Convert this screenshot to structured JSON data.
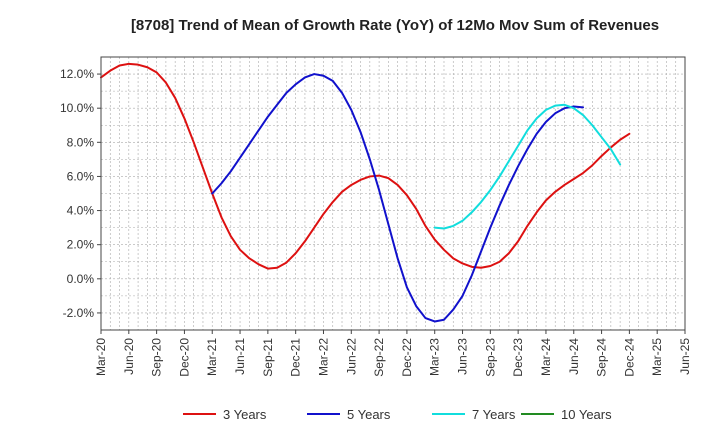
{
  "chart_data": {
    "type": "line",
    "title": "[8708]  Trend of Mean of Growth Rate (YoY) of 12Mo Mov Sum of Revenues",
    "xlabel": "",
    "ylabel": "",
    "x_ticks": [
      "Mar-20",
      "Jun-20",
      "Sep-20",
      "Dec-20",
      "Mar-21",
      "Jun-21",
      "Sep-21",
      "Dec-21",
      "Mar-22",
      "Jun-22",
      "Sep-22",
      "Dec-22",
      "Mar-23",
      "Jun-23",
      "Sep-23",
      "Dec-23",
      "Mar-24",
      "Jun-24",
      "Sep-24",
      "Dec-24",
      "Mar-25",
      "Jun-25"
    ],
    "y_ticks": [
      "12.0%",
      "10.0%",
      "8.0%",
      "6.0%",
      "4.0%",
      "2.0%",
      "0.0%",
      "-2.0%"
    ],
    "y_tick_values": [
      12,
      10,
      8,
      6,
      4,
      2,
      0,
      -2
    ],
    "ylim": [
      -3.0,
      13.0
    ],
    "xlim_months": [
      0,
      63
    ],
    "grid": true,
    "legend_position": "bottom",
    "series": [
      {
        "name": "3 Years",
        "color": "#dd1111",
        "start_month": 0,
        "values": [
          11.8,
          12.2,
          12.5,
          12.6,
          12.55,
          12.4,
          12.1,
          11.5,
          10.6,
          9.4,
          8.0,
          6.5,
          5.0,
          3.6,
          2.5,
          1.7,
          1.2,
          0.85,
          0.6,
          0.65,
          0.95,
          1.5,
          2.2,
          3.0,
          3.8,
          4.5,
          5.1,
          5.5,
          5.8,
          6.0,
          6.05,
          5.9,
          5.5,
          4.9,
          4.1,
          3.1,
          2.3,
          1.7,
          1.2,
          0.9,
          0.7,
          0.65,
          0.75,
          1.0,
          1.5,
          2.2,
          3.1,
          3.9,
          4.6,
          5.1,
          5.5,
          5.85,
          6.2,
          6.65,
          7.2,
          7.7,
          8.15,
          8.5
        ]
      },
      {
        "name": "5 Years",
        "color": "#1111cc",
        "start_month": 12,
        "values": [
          5.0,
          5.6,
          6.3,
          7.1,
          7.9,
          8.7,
          9.5,
          10.2,
          10.9,
          11.4,
          11.8,
          12.0,
          11.9,
          11.6,
          10.9,
          9.9,
          8.6,
          7.0,
          5.2,
          3.2,
          1.2,
          -0.5,
          -1.6,
          -2.3,
          -2.5,
          -2.4,
          -1.8,
          -1.0,
          0.2,
          1.6,
          3.0,
          4.3,
          5.5,
          6.6,
          7.6,
          8.5,
          9.2,
          9.7,
          10.0,
          10.1,
          10.05
        ]
      },
      {
        "name": "7 Years",
        "color": "#11dddd",
        "start_month": 36,
        "values": [
          3.0,
          2.95,
          3.1,
          3.4,
          3.9,
          4.5,
          5.2,
          6.0,
          6.9,
          7.8,
          8.7,
          9.4,
          9.9,
          10.15,
          10.2,
          10.0,
          9.6,
          9.0,
          8.3,
          7.6,
          6.7
        ]
      },
      {
        "name": "10 Years",
        "color": "#228b22",
        "start_month": null,
        "values": []
      }
    ]
  }
}
